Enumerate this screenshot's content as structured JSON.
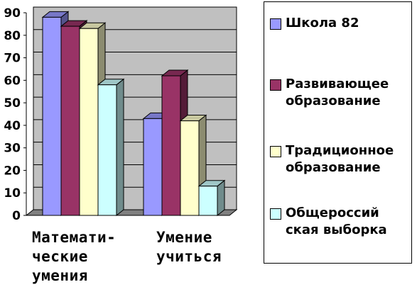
{
  "chart_data": {
    "type": "bar",
    "categories": [
      [
        "Математи-",
        "ческие",
        "умения"
      ],
      [
        "Умение",
        "учиться"
      ]
    ],
    "series": [
      {
        "name": "Школа 82",
        "color": "#9999ff",
        "values": [
          88,
          43
        ]
      },
      {
        "name": "Развивающее\nобразование",
        "color": "#993366",
        "values": [
          84,
          62
        ]
      },
      {
        "name": "Традиционное\nобразование",
        "color": "#ffffcc",
        "values": [
          83,
          42
        ]
      },
      {
        "name": "Общероссий\nская выборка",
        "color": "#ccffff",
        "values": [
          58,
          13
        ]
      }
    ],
    "ylim": [
      0,
      90
    ],
    "yticks": [
      "0",
      "10",
      "20",
      "30",
      "40",
      "50",
      "60",
      "70",
      "80",
      "90"
    ],
    "grid": true,
    "plot_background": "#c0c0c0",
    "legend_position": "right"
  }
}
